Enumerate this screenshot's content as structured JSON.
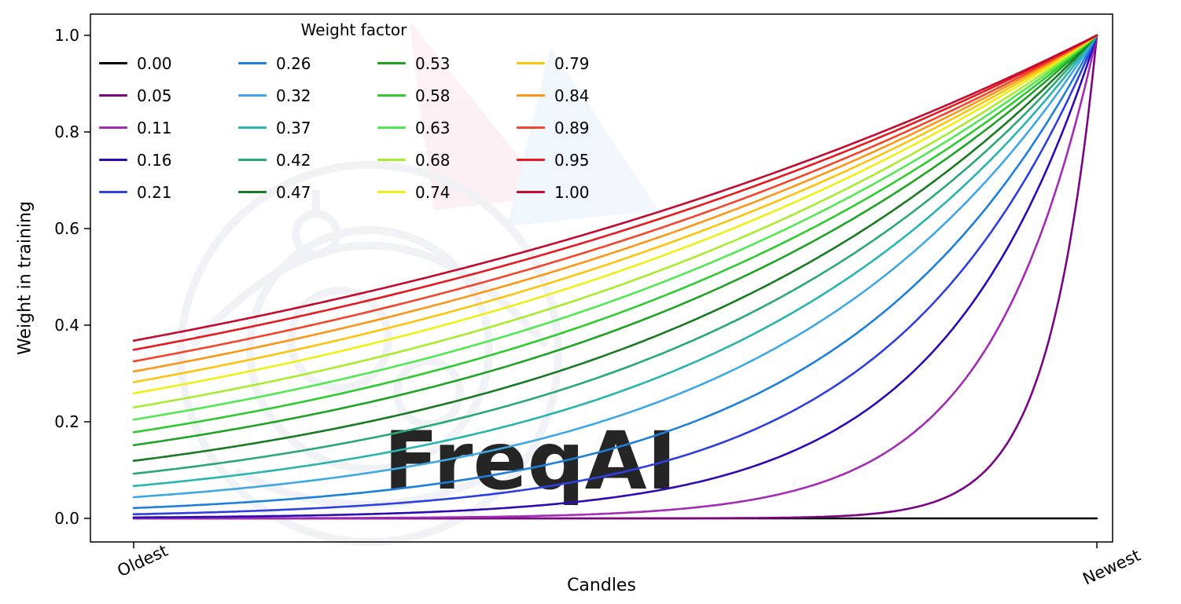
{
  "figure": {
    "background": "#ffffff",
    "watermark": "FreqAI"
  },
  "chart_data": {
    "type": "line",
    "title": "",
    "xlabel": "Candles",
    "ylabel": "Weight in training",
    "x_tick_labels": [
      "Oldest",
      "Newest"
    ],
    "ylim": [
      0.0,
      1.0
    ],
    "y_ticks": [
      0.0,
      0.2,
      0.4,
      0.6,
      0.8,
      1.0
    ],
    "grid": false,
    "legend": {
      "title": "Weight factor",
      "position": "upper-left",
      "columns": 4,
      "rows": 5,
      "order": "column-major"
    },
    "curve_formula": "weight(x) = exp(-(1 - x) / factor) for factor > 0; factor = 0 gives a flat line at 0. x runs from 0 (Oldest) to 1 (Newest).",
    "series": [
      {
        "label": "0.00",
        "factor": 0.0,
        "color": "#000000",
        "y_oldest": 0.0,
        "y_newest": 0.0
      },
      {
        "label": "0.05",
        "factor": 0.05,
        "color": "#7a0483",
        "y_oldest": 0.0,
        "y_newest": 1.0
      },
      {
        "label": "0.11",
        "factor": 0.11,
        "color": "#a32bb5",
        "y_oldest": 0.0,
        "y_newest": 1.0
      },
      {
        "label": "0.16",
        "factor": 0.16,
        "color": "#2d0ab4",
        "y_oldest": 0.002,
        "y_newest": 1.0
      },
      {
        "label": "0.21",
        "factor": 0.21,
        "color": "#2e3fe2",
        "y_oldest": 0.009,
        "y_newest": 1.0
      },
      {
        "label": "0.26",
        "factor": 0.26,
        "color": "#1d7fdb",
        "y_oldest": 0.021,
        "y_newest": 1.0
      },
      {
        "label": "0.32",
        "factor": 0.32,
        "color": "#3fa7e6",
        "y_oldest": 0.044,
        "y_newest": 1.0
      },
      {
        "label": "0.37",
        "factor": 0.37,
        "color": "#28b5ad",
        "y_oldest": 0.067,
        "y_newest": 1.0
      },
      {
        "label": "0.42",
        "factor": 0.42,
        "color": "#2aa876",
        "y_oldest": 0.092,
        "y_newest": 1.0
      },
      {
        "label": "0.47",
        "factor": 0.47,
        "color": "#187a21",
        "y_oldest": 0.119,
        "y_newest": 1.0
      },
      {
        "label": "0.53",
        "factor": 0.53,
        "color": "#1fa325",
        "y_oldest": 0.152,
        "y_newest": 1.0
      },
      {
        "label": "0.58",
        "factor": 0.58,
        "color": "#2ecb2e",
        "y_oldest": 0.178,
        "y_newest": 1.0
      },
      {
        "label": "0.63",
        "factor": 0.63,
        "color": "#52e852",
        "y_oldest": 0.204,
        "y_newest": 1.0
      },
      {
        "label": "0.68",
        "factor": 0.68,
        "color": "#a8ec2e",
        "y_oldest": 0.23,
        "y_newest": 1.0
      },
      {
        "label": "0.74",
        "factor": 0.74,
        "color": "#eef014",
        "y_oldest": 0.259,
        "y_newest": 1.0
      },
      {
        "label": "0.79",
        "factor": 0.79,
        "color": "#fcc40c",
        "y_oldest": 0.282,
        "y_newest": 1.0
      },
      {
        "label": "0.84",
        "factor": 0.84,
        "color": "#fc9616",
        "y_oldest": 0.304,
        "y_newest": 1.0
      },
      {
        "label": "0.89",
        "factor": 0.89,
        "color": "#f4452c",
        "y_oldest": 0.325,
        "y_newest": 1.0
      },
      {
        "label": "0.95",
        "factor": 0.95,
        "color": "#e6191f",
        "y_oldest": 0.349,
        "y_newest": 1.0
      },
      {
        "label": "1.00",
        "factor": 1.0,
        "color": "#c40a2e",
        "y_oldest": 0.368,
        "y_newest": 1.0
      }
    ]
  }
}
